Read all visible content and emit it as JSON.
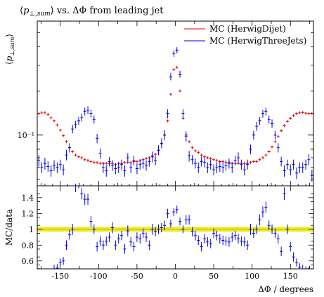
{
  "chart_data": [
    {
      "type": "scatter",
      "title": "⟨p⊥,sum⟩ vs. ΔΦ from leading jet",
      "ylabel": "⟨p⊥,sum⟩",
      "xlabel": "",
      "xlim": [
        -180,
        180
      ],
      "ylim": [
        0.045,
        0.6
      ],
      "yscale": "log",
      "yticks": [
        {
          "value": 0.1,
          "label": "10⁻¹"
        }
      ],
      "legend_position": "top-right",
      "series": [
        {
          "name": "MC (HerwigDijet)",
          "color": "#e00000",
          "marker": "plus",
          "x": [
            -178,
            -174,
            -170,
            -166,
            -162,
            -158,
            -154,
            -150,
            -146,
            -142,
            -138,
            -134,
            -130,
            -126,
            -122,
            -118,
            -114,
            -110,
            -106,
            -102,
            -98,
            -94,
            -90,
            -86,
            -82,
            -78,
            -74,
            -70,
            -66,
            -62,
            -58,
            -54,
            -50,
            -46,
            -42,
            -38,
            -34,
            -30,
            -26,
            -22,
            -18,
            -14,
            -10,
            -6,
            -2,
            2,
            6,
            10,
            14,
            18,
            22,
            26,
            30,
            34,
            38,
            42,
            46,
            50,
            54,
            58,
            62,
            66,
            70,
            74,
            78,
            82,
            86,
            90,
            94,
            98,
            102,
            106,
            110,
            114,
            118,
            122,
            126,
            130,
            134,
            138,
            142,
            146,
            150,
            154,
            158,
            162,
            166,
            170,
            174,
            178
          ],
          "values": [
            0.14,
            0.142,
            0.142,
            0.138,
            0.131,
            0.125,
            0.117,
            0.108,
            0.099,
            0.09,
            0.082,
            0.077,
            0.073,
            0.071,
            0.07,
            0.068,
            0.067,
            0.066,
            0.065,
            0.065,
            0.064,
            0.064,
            0.064,
            0.064,
            0.064,
            0.063,
            0.064,
            0.064,
            0.065,
            0.065,
            0.065,
            0.066,
            0.066,
            0.067,
            0.068,
            0.069,
            0.07,
            0.072,
            0.074,
            0.078,
            0.087,
            0.1,
            0.125,
            0.19,
            0.28,
            0.29,
            0.2,
            0.13,
            0.1,
            0.09,
            0.082,
            0.078,
            0.076,
            0.073,
            0.071,
            0.07,
            0.069,
            0.068,
            0.067,
            0.066,
            0.066,
            0.065,
            0.065,
            0.064,
            0.064,
            0.064,
            0.064,
            0.064,
            0.064,
            0.065,
            0.066,
            0.066,
            0.068,
            0.07,
            0.073,
            0.077,
            0.083,
            0.09,
            0.098,
            0.107,
            0.116,
            0.124,
            0.13,
            0.136,
            0.14,
            0.142,
            0.143,
            0.141,
            0.14,
            0.14
          ]
        },
        {
          "name": "MC (HerwigThreeJets)",
          "color": "#0000e0",
          "marker": "errorbar",
          "x": [
            -178,
            -174,
            -170,
            -166,
            -162,
            -158,
            -154,
            -150,
            -146,
            -142,
            -138,
            -134,
            -130,
            -126,
            -122,
            -118,
            -114,
            -110,
            -106,
            -102,
            -98,
            -94,
            -90,
            -86,
            -82,
            -78,
            -74,
            -70,
            -66,
            -62,
            -58,
            -54,
            -50,
            -46,
            -42,
            -38,
            -34,
            -30,
            -26,
            -22,
            -18,
            -14,
            -10,
            -6,
            -2,
            2,
            6,
            10,
            14,
            18,
            22,
            26,
            30,
            34,
            38,
            42,
            46,
            50,
            54,
            58,
            62,
            66,
            70,
            74,
            78,
            82,
            86,
            90,
            94,
            98,
            102,
            106,
            110,
            114,
            118,
            122,
            126,
            130,
            134,
            138,
            142,
            146,
            150,
            154,
            158,
            162,
            166,
            170,
            174,
            178
          ],
          "values": [
            0.067,
            0.06,
            0.064,
            0.061,
            0.057,
            0.062,
            0.06,
            0.063,
            0.058,
            0.073,
            0.082,
            0.11,
            0.118,
            0.125,
            0.132,
            0.145,
            0.148,
            0.14,
            0.128,
            0.095,
            0.075,
            0.06,
            0.057,
            0.066,
            0.062,
            0.059,
            0.06,
            0.063,
            0.057,
            0.07,
            0.06,
            0.067,
            0.059,
            0.063,
            0.064,
            0.062,
            0.066,
            0.071,
            0.067,
            0.079,
            0.088,
            0.1,
            0.14,
            0.25,
            0.36,
            0.38,
            0.26,
            0.14,
            0.098,
            0.072,
            0.068,
            0.064,
            0.06,
            0.066,
            0.065,
            0.06,
            0.063,
            0.058,
            0.06,
            0.061,
            0.06,
            0.062,
            0.064,
            0.06,
            0.067,
            0.07,
            0.063,
            0.058,
            0.063,
            0.08,
            0.1,
            0.115,
            0.125,
            0.14,
            0.145,
            0.128,
            0.12,
            0.1,
            0.082,
            0.066,
            0.057,
            0.063,
            0.058,
            0.063,
            0.055,
            0.06,
            0.06,
            0.063,
            0.068,
            0.053
          ],
          "errors": [
            0.006,
            0.005,
            0.006,
            0.005,
            0.005,
            0.005,
            0.005,
            0.005,
            0.005,
            0.006,
            0.006,
            0.007,
            0.007,
            0.008,
            0.008,
            0.009,
            0.009,
            0.009,
            0.008,
            0.007,
            0.006,
            0.005,
            0.005,
            0.005,
            0.005,
            0.005,
            0.005,
            0.005,
            0.005,
            0.005,
            0.005,
            0.005,
            0.005,
            0.005,
            0.005,
            0.005,
            0.005,
            0.006,
            0.005,
            0.006,
            0.007,
            0.008,
            0.01,
            0.014,
            0.018,
            0.018,
            0.014,
            0.01,
            0.008,
            0.006,
            0.005,
            0.005,
            0.005,
            0.005,
            0.005,
            0.005,
            0.005,
            0.005,
            0.005,
            0.005,
            0.005,
            0.005,
            0.005,
            0.005,
            0.005,
            0.006,
            0.005,
            0.005,
            0.005,
            0.006,
            0.007,
            0.008,
            0.008,
            0.009,
            0.009,
            0.008,
            0.008,
            0.007,
            0.006,
            0.005,
            0.005,
            0.005,
            0.005,
            0.005,
            0.005,
            0.005,
            0.005,
            0.005,
            0.006,
            0.005
          ]
        }
      ]
    },
    {
      "type": "scatter",
      "title": "",
      "xlabel": "ΔΦ / degrees",
      "ylabel": "MC/data",
      "xlim": [
        -180,
        180
      ],
      "ylim": [
        0.5,
        1.55
      ],
      "xticks": [
        -150,
        -100,
        -50,
        0,
        50,
        100,
        150
      ],
      "yticks": [
        0.6,
        0.8,
        1,
        1.2,
        1.4
      ],
      "reference_line": 1,
      "reference_band": [
        0.97,
        1.03
      ],
      "reference_color": "#e8e800",
      "series": [
        {
          "name": "MC (HerwigThreeJets)",
          "color": "#0000e0",
          "x": [
            -178,
            -174,
            -170,
            -166,
            -162,
            -158,
            -154,
            -150,
            -146,
            -142,
            -138,
            -134,
            -130,
            -126,
            -122,
            -118,
            -114,
            -110,
            -106,
            -102,
            -98,
            -94,
            -90,
            -86,
            -82,
            -78,
            -74,
            -70,
            -66,
            -62,
            -58,
            -54,
            -50,
            -46,
            -42,
            -38,
            -34,
            -30,
            -26,
            -22,
            -18,
            -14,
            -10,
            -6,
            -2,
            2,
            6,
            10,
            14,
            18,
            22,
            26,
            30,
            34,
            38,
            42,
            46,
            50,
            54,
            58,
            62,
            66,
            70,
            74,
            78,
            82,
            86,
            90,
            94,
            98,
            102,
            106,
            110,
            114,
            118,
            122,
            126,
            130,
            134,
            138,
            142,
            146,
            150,
            154,
            158,
            162,
            166,
            170,
            174,
            178
          ],
          "values": [
            0.46,
            0.42,
            0.45,
            0.44,
            0.43,
            0.5,
            0.51,
            0.58,
            0.6,
            0.8,
            0.93,
            1.0,
            1.55,
            1.6,
            1.45,
            1.38,
            1.38,
            1.1,
            1.0,
            0.78,
            0.85,
            0.8,
            0.85,
            0.9,
            1.02,
            0.8,
            0.88,
            0.92,
            0.75,
            0.98,
            0.84,
            0.78,
            0.9,
            0.88,
            0.95,
            0.9,
            0.8,
            1.0,
            0.97,
            1.0,
            1.02,
            1.05,
            1.2,
            1.07,
            1.22,
            1.25,
            1.1,
            1.0,
            1.12,
            1.12,
            0.97,
            0.92,
            0.86,
            0.78,
            0.88,
            0.84,
            0.82,
            0.95,
            0.92,
            0.88,
            0.86,
            0.85,
            0.84,
            0.9,
            0.92,
            0.88,
            0.85,
            0.84,
            0.8,
            1.0,
            0.95,
            1.0,
            1.12,
            1.22,
            1.28,
            1.05,
            1.0,
            0.95,
            0.88,
            0.72,
            1.45,
            1.0,
            0.78,
            0.65,
            0.58,
            0.52,
            0.5,
            0.48,
            0.47,
            0.45
          ],
          "errors": [
            0.05,
            0.05,
            0.05,
            0.05,
            0.05,
            0.05,
            0.05,
            0.05,
            0.05,
            0.06,
            0.06,
            0.07,
            0.08,
            0.08,
            0.07,
            0.07,
            0.07,
            0.07,
            0.06,
            0.06,
            0.06,
            0.06,
            0.06,
            0.06,
            0.07,
            0.06,
            0.06,
            0.06,
            0.06,
            0.07,
            0.06,
            0.06,
            0.06,
            0.06,
            0.06,
            0.06,
            0.06,
            0.07,
            0.06,
            0.06,
            0.06,
            0.06,
            0.06,
            0.05,
            0.05,
            0.05,
            0.05,
            0.05,
            0.06,
            0.06,
            0.06,
            0.06,
            0.06,
            0.06,
            0.06,
            0.06,
            0.06,
            0.06,
            0.06,
            0.06,
            0.06,
            0.06,
            0.06,
            0.06,
            0.06,
            0.06,
            0.06,
            0.06,
            0.06,
            0.07,
            0.06,
            0.06,
            0.07,
            0.07,
            0.07,
            0.06,
            0.06,
            0.06,
            0.06,
            0.06,
            0.08,
            0.06,
            0.06,
            0.06,
            0.05,
            0.05,
            0.05,
            0.05,
            0.05,
            0.05
          ]
        }
      ]
    }
  ]
}
